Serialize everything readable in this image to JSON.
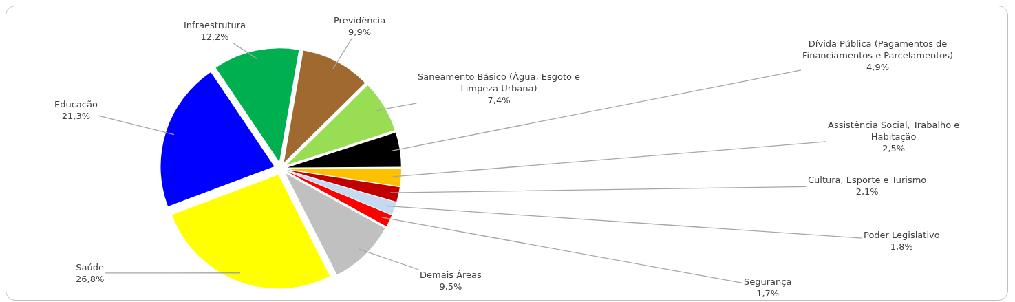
{
  "chart_data": {
    "type": "pie",
    "categories": [
      "Infraestrutura",
      "Previdência",
      "Saneamento Básico (Água, Esgoto e Limpeza Urbana)",
      "Dívida Pública (Pagamentos de Financiamentos e Parcelamentos)",
      "Assistência Social, Trabalho e Habitação",
      "Cultura, Esporte e Turismo",
      "Poder Legislativo",
      "Segurança",
      "Demais Áreas",
      "Saúde",
      "Educação"
    ],
    "values": [
      12.2,
      9.9,
      7.4,
      4.9,
      2.5,
      2.1,
      1.8,
      1.7,
      9.5,
      26.8,
      21.3
    ],
    "value_labels": [
      "12,2%",
      "9,9%",
      "7,4%",
      "4,9%",
      "2,5%",
      "2,1%",
      "1,8%",
      "1,7%",
      "9,5%",
      "26,8%",
      "21,3%"
    ],
    "colors": [
      "#00b050",
      "#a0692f",
      "#99dd55",
      "#000000",
      "#ffc000",
      "#c00000",
      "#c5d9f1",
      "#ff0000",
      "#c0c0c0",
      "#ffff00",
      "#0000ff"
    ],
    "legend": false
  }
}
